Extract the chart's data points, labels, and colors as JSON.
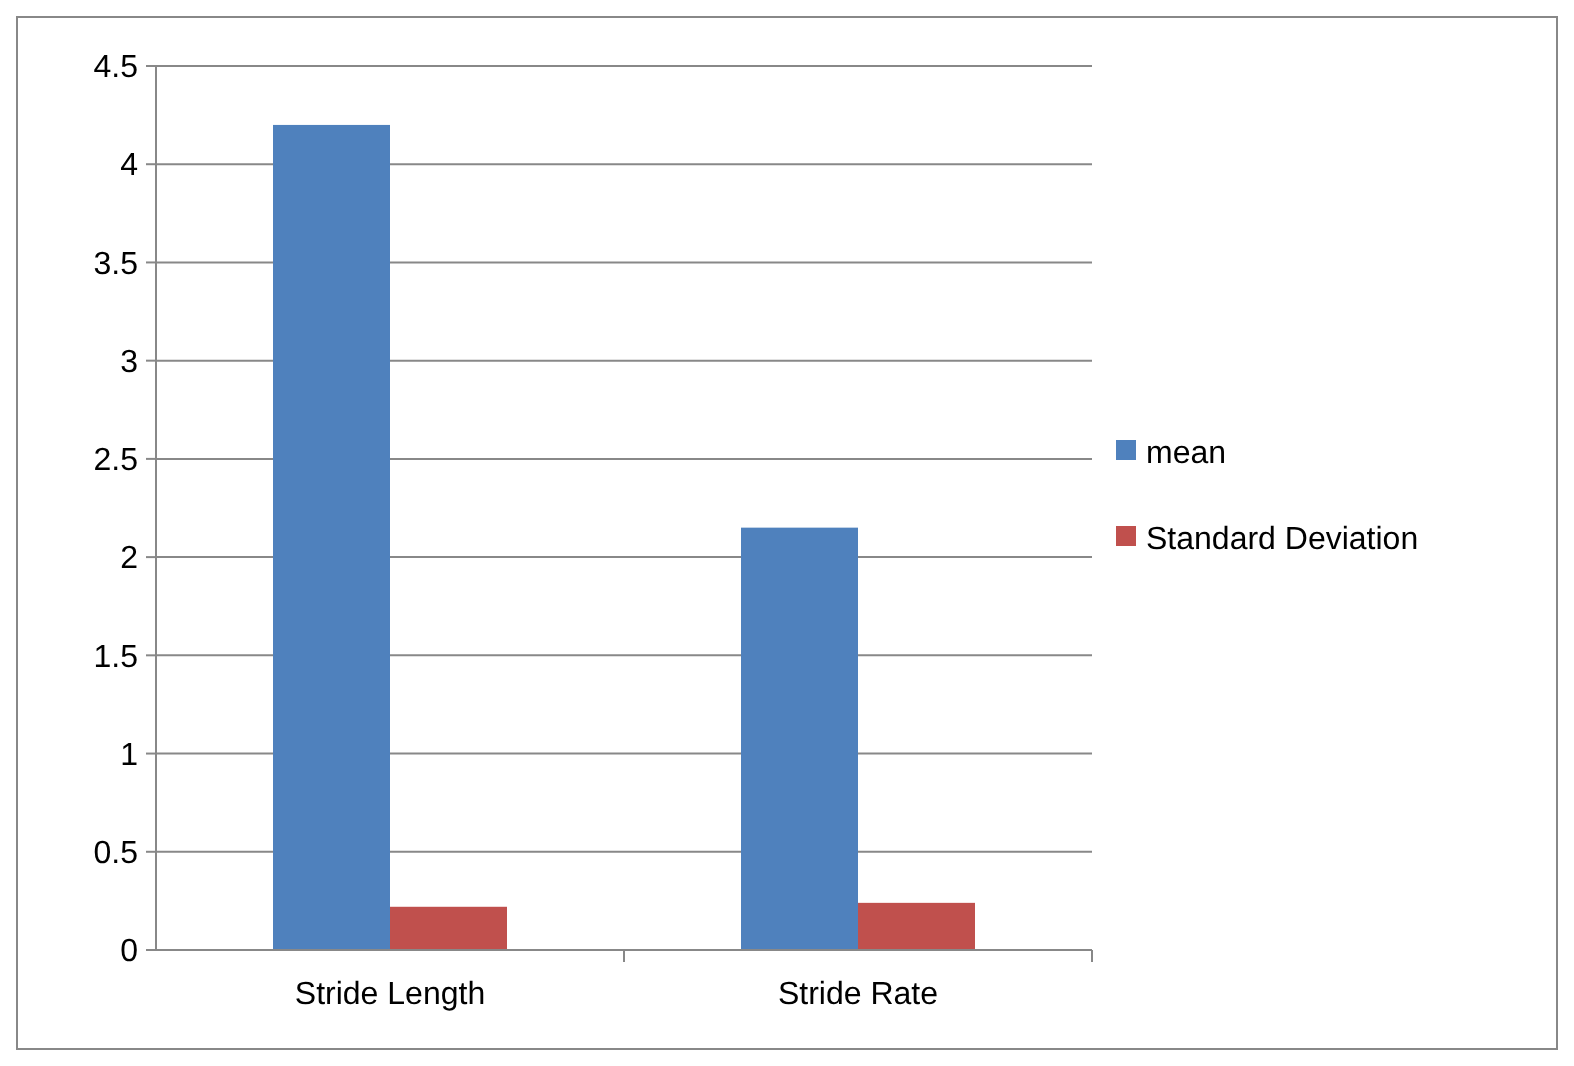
{
  "chart_data": {
    "type": "bar",
    "categories": [
      "Stride Length",
      "Stride Rate"
    ],
    "series": [
      {
        "name": "mean",
        "color": "#4f81bd",
        "values": [
          4.2,
          2.15
        ]
      },
      {
        "name": "Standard Deviation",
        "color": "#c0504d",
        "values": [
          0.22,
          0.24
        ]
      }
    ],
    "ylim": [
      0,
      4.5
    ],
    "yticks": [
      0,
      0.5,
      1,
      1.5,
      2,
      2.5,
      3,
      3.5,
      4,
      4.5
    ],
    "grid": "y",
    "legend": "right"
  }
}
